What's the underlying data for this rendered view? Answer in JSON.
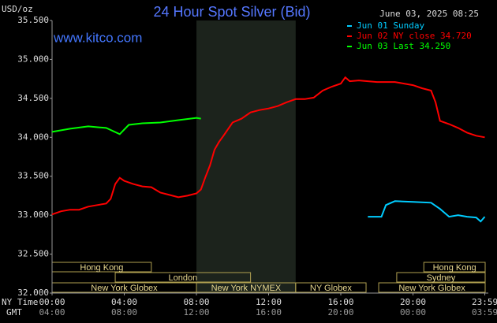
{
  "chart_data": {
    "type": "line",
    "title": "24 Hour Spot Silver (Bid)",
    "timestamp": "June 03, 2025 08:25",
    "y_label": "USD/oz",
    "watermark": "www.kitco.com",
    "x_row_labels": [
      "NY Time",
      "GMT"
    ],
    "xlim": [
      0,
      24
    ],
    "xticks": [
      {
        "value": 0,
        "label": "00:00"
      },
      {
        "value": 4,
        "label": "04:00"
      },
      {
        "value": 8,
        "label": "08:00"
      },
      {
        "value": 12,
        "label": "12:00"
      },
      {
        "value": 16,
        "label": "16:00"
      },
      {
        "value": 20,
        "label": "20:00"
      },
      {
        "value": 23.98,
        "label": "23:59"
      }
    ],
    "gmt_tick_labels": [
      "04:00",
      "08:00",
      "12:00",
      "16:00",
      "20:00",
      "00:00",
      "03:59"
    ],
    "ylim": [
      32.0,
      35.5
    ],
    "yticks": [
      {
        "value": 32.0,
        "label": "32.000"
      },
      {
        "value": 32.5,
        "label": "32.500"
      },
      {
        "value": 33.0,
        "label": "33.000"
      },
      {
        "value": 33.5,
        "label": "33.500"
      },
      {
        "value": 34.0,
        "label": "34.000"
      },
      {
        "value": 34.5,
        "label": "34.500"
      },
      {
        "value": 35.0,
        "label": "35.000"
      },
      {
        "value": 35.5,
        "label": "35.500"
      }
    ],
    "sessions": [
      {
        "label": "Hong Kong",
        "start": 0,
        "end": 5.5
      },
      {
        "label": "London",
        "start": 3.5,
        "end": 11
      },
      {
        "label": "New York Globex",
        "start": 0,
        "end": 8
      },
      {
        "label": "New York NYMEX",
        "start": 8,
        "end": 13.5
      },
      {
        "label": "NY Globex",
        "start": 13.5,
        "end": 17.4
      },
      {
        "label": "Hong Kong",
        "start": 20.6,
        "end": 24
      },
      {
        "label": "Sydney",
        "start": 19.1,
        "end": 24
      },
      {
        "label": "New York Globex",
        "start": 18.1,
        "end": 24
      }
    ],
    "series": [
      {
        "name": "Jun 01 Sunday",
        "color": "#00ccff",
        "x": [
          17.5,
          18.25,
          18.5,
          19,
          20,
          21,
          21.5,
          22,
          22.5,
          23,
          23.5,
          23.75,
          23.98
        ],
        "values": [
          32.98,
          32.98,
          33.13,
          33.18,
          33.17,
          33.16,
          33.08,
          32.98,
          33.0,
          32.98,
          32.97,
          32.92,
          32.98
        ]
      },
      {
        "name": "Jun 02 NY close 34.720",
        "color": "#ff0000",
        "x": [
          0,
          0.5,
          1,
          1.5,
          2,
          2.5,
          3,
          3.25,
          3.5,
          3.75,
          4,
          4.5,
          5,
          5.5,
          6,
          6.5,
          7,
          7.5,
          8,
          8.25,
          8.5,
          8.75,
          9,
          9.25,
          9.5,
          10,
          10.5,
          11,
          11.5,
          12,
          12.5,
          13,
          13.5,
          14,
          14.5,
          15,
          15.5,
          16,
          16.25,
          16.5,
          17,
          17.5,
          18,
          18.5,
          19,
          19.5,
          20,
          20.5,
          21,
          21.25,
          21.5,
          22,
          22.5,
          23,
          23.5,
          23.98
        ],
        "values": [
          33.01,
          33.05,
          33.07,
          33.07,
          33.11,
          33.13,
          33.15,
          33.21,
          33.4,
          33.48,
          33.44,
          33.4,
          33.37,
          33.36,
          33.29,
          33.26,
          33.23,
          33.25,
          33.28,
          33.33,
          33.49,
          33.64,
          33.84,
          33.94,
          34.02,
          34.19,
          34.24,
          34.32,
          34.35,
          34.37,
          34.4,
          34.45,
          34.49,
          34.49,
          34.51,
          34.6,
          34.65,
          34.69,
          34.77,
          34.72,
          34.73,
          34.72,
          34.71,
          34.71,
          34.71,
          34.69,
          34.67,
          34.63,
          34.6,
          34.45,
          34.21,
          34.17,
          34.12,
          34.06,
          34.02,
          34.0
        ]
      },
      {
        "name": "Jun 03 Last 34.250",
        "color": "#00ff00",
        "x": [
          0,
          1,
          2,
          3,
          3.75,
          4.25,
          5,
          6,
          7,
          8,
          8.25
        ],
        "values": [
          34.07,
          34.11,
          34.14,
          34.12,
          34.04,
          34.16,
          34.18,
          34.19,
          34.22,
          34.25,
          34.24
        ]
      }
    ]
  }
}
